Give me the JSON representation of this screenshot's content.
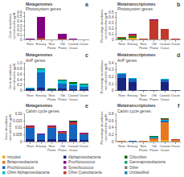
{
  "chart_data": [
    {
      "type": "bar",
      "stacked": true,
      "grid": false,
      "title": "Metagenomes",
      "subtitle": "Photosystem genes",
      "annotations": [
        "a"
      ],
      "ylabel": "Gene abundance normalised to gyrB",
      "categories": [
        "River",
        "Estuary",
        "New Plume",
        "Old Plume",
        "Coastal\nOcean",
        "Ocean"
      ],
      "series": [
        {
          "color": "#c0392b",
          "values": [
            0.005,
            0.04,
            0.003,
            0.015,
            0.005,
            0.003
          ]
        },
        {
          "color": "#800080",
          "values": [
            0.01,
            0.46,
            0.003,
            0.115,
            0.02,
            0.003
          ]
        }
      ],
      "ylim": [
        0,
        0.6
      ],
      "yticks": [
        0,
        0.1,
        0.2,
        0.3,
        0.4,
        0.5,
        0.6
      ]
    },
    {
      "type": "bar",
      "stacked": true,
      "grid": false,
      "title": "Metatranscriptomes",
      "subtitle": "Photosystem genes",
      "annotations": [
        "b"
      ],
      "ylabel": "Percentage abundance normalised to gyrB",
      "categories": [
        "River",
        "Estuary",
        "New Plume",
        "Old Plume",
        "Coastal\nOcean",
        "Ocean"
      ],
      "series": [
        {
          "color": "#f5a623",
          "values": [
            0.01,
            0.04,
            0.005,
            0.005,
            0.005,
            0.005
          ]
        },
        {
          "color": "#228800",
          "values": [
            0.02,
            0.02,
            0.005,
            0.005,
            0.005,
            0.005
          ]
        },
        {
          "color": "#c0392b",
          "values": [
            0.02,
            0.03,
            0.005,
            0.35,
            0.18,
            0.005
          ]
        },
        {
          "color": "#800080",
          "values": [
            0.005,
            0.01,
            0.003,
            0.005,
            0.005,
            0.003
          ]
        }
      ],
      "ylim": [
        0,
        0.5
      ],
      "yticks": [
        0,
        0.1,
        0.2,
        0.3,
        0.4,
        0.5
      ]
    },
    {
      "type": "bar",
      "stacked": true,
      "grid": false,
      "title": "Metagenomes",
      "subtitle": "AnP genes",
      "annotations": [
        "c"
      ],
      "ylabel": "Gene abundance normalised to gyrB",
      "categories": [
        "River",
        "Estuary",
        "New Plume",
        "Old Plume",
        "Coastal\nOcean",
        "Ocean"
      ],
      "series": [
        {
          "color": "#1a237e",
          "values": [
            0.05,
            0.1,
            0.03,
            0.08,
            0.06,
            0.05
          ]
        },
        {
          "color": "#1565c0",
          "values": [
            0.02,
            0.55,
            0.01,
            0.18,
            0.12,
            0.1
          ]
        },
        {
          "color": "#00bcd4",
          "values": [
            0.04,
            0.12,
            0.02,
            0.1,
            0.08,
            0.06
          ]
        },
        {
          "color": "#006400",
          "values": [
            0.01,
            0.03,
            0.005,
            0.04,
            0.04,
            0.03
          ]
        }
      ],
      "ylim": [
        0,
        1.0
      ],
      "yticks": [
        0,
        0.2,
        0.4,
        0.6,
        0.8,
        {
          "value": 1.0,
          "label": "1.0"
        }
      ]
    },
    {
      "type": "bar",
      "stacked": true,
      "grid": false,
      "title": "Metatranscriptomes",
      "subtitle": "AnP genes",
      "annotations": [
        "d"
      ],
      "ylabel": "Percentage abundance normalised to gyrB",
      "categories": [
        "River",
        "Estuary",
        "New Plume",
        "Old Plume",
        "Coastal\nOcean",
        "Ocean"
      ],
      "series": [
        {
          "color": "#1a237e",
          "values": [
            0.18,
            0.12,
            0.005,
            0.005,
            0.12,
            0.003
          ]
        },
        {
          "color": "#1565c0",
          "values": [
            0.06,
            0.05,
            0.003,
            0.003,
            0.04,
            0.002
          ]
        },
        {
          "color": "#00bcd4",
          "values": [
            0.01,
            0.01,
            0.002,
            0.002,
            0.01,
            0.001
          ]
        }
      ],
      "ylim": [
        0,
        0.4
      ],
      "yticks": [
        0,
        0.1,
        0.2,
        0.3,
        0.4
      ]
    },
    {
      "type": "bar",
      "stacked": true,
      "grid": false,
      "title": "Metagenomes",
      "subtitle": "Calvin cycle genes",
      "annotations": [
        "e"
      ],
      "ylabel": "Gene abundance normalised to gyrB",
      "categories": [
        "River",
        "Estuary",
        "New Plume",
        "Old Plume",
        "Coastal\nOcean",
        "Ocean"
      ],
      "series": [
        {
          "color": "#1a237e",
          "values": [
            0.002,
            0.001,
            0.002,
            0.001,
            0.002,
            0.001
          ]
        },
        {
          "color": "#1565c0",
          "values": [
            0.008,
            0.004,
            0.008,
            0.005,
            0.01,
            0.004
          ]
        },
        {
          "color": "#c0392b",
          "values": [
            0.001,
            0.0005,
            0.001,
            0.001,
            0.002,
            0.001
          ]
        },
        {
          "color": "#800080",
          "values": [
            0.0005,
            0.0003,
            0.0005,
            0.0004,
            0.0008,
            0.0003
          ]
        },
        {
          "color": "#006400",
          "values": [
            0.0003,
            0.0002,
            0.0003,
            0.0002,
            0.0004,
            0.0002
          ]
        }
      ],
      "ylim": [
        0,
        0.02
      ],
      "yticks": [
        0,
        0.005,
        0.01,
        0.015,
        0.02
      ]
    },
    {
      "type": "bar",
      "stacked": true,
      "grid": false,
      "title": "Metatranscriptomes",
      "subtitle": "Calvin cycle genes",
      "annotations": [
        "f"
      ],
      "ylabel": "Percentage abundance normalised to gyrB",
      "categories": [
        "River",
        "Estuary",
        "New Plume",
        "Old Plume",
        "Coastal\nOcean",
        "Ocean"
      ],
      "series": [
        {
          "color": "#f5a623",
          "values": [
            0.005,
            0.003,
            0.005,
            0.025,
            0.05,
            0.01
          ]
        },
        {
          "color": "#e87722",
          "values": [
            0.015,
            0.008,
            0.015,
            0.07,
            0.5,
            0.03
          ]
        },
        {
          "color": "#1565c0",
          "values": [
            0.005,
            0.003,
            0.005,
            0.025,
            0.05,
            0.01
          ]
        },
        {
          "color": "#00bcd4",
          "values": [
            0.003,
            0.002,
            0.003,
            0.015,
            0.03,
            0.006
          ]
        },
        {
          "color": "#c0392b",
          "values": [
            0.002,
            0.001,
            0.002,
            0.01,
            0.02,
            0.004
          ]
        },
        {
          "color": "#006400",
          "values": [
            0.002,
            0.001,
            0.002,
            0.01,
            0.02,
            0.004
          ]
        },
        {
          "color": "#808080",
          "values": [
            0.001,
            0.001,
            0.001,
            0.005,
            0.01,
            0.002
          ]
        }
      ],
      "ylim": [
        0,
        0.8
      ],
      "yticks": [
        0,
        0.2,
        0.4,
        0.6,
        0.8
      ]
    },
    {
      "type": "legend",
      "series": [
        {
          "name": "Intruded",
          "color": "#f5a623"
        },
        {
          "name": "Betaproteobacteria",
          "color": "#e87722"
        },
        {
          "name": "Prochlorococcus",
          "color": "#1565c0"
        },
        {
          "name": "Other Alphaproteobacteria",
          "color": "#00bcd4"
        },
        {
          "name": "Alphaproteobacteria",
          "color": "#1a237e"
        },
        {
          "name": "Prochlorococcus",
          "color": "#800080"
        },
        {
          "name": "Synechococcus",
          "color": "#a040a0"
        },
        {
          "name": "Other Cyanobacteria",
          "color": "#c0392b"
        },
        {
          "name": "Chloroflexi",
          "color": "#006400"
        },
        {
          "name": "Gammaproteobacteria",
          "color": "#16a085"
        },
        {
          "name": "Other",
          "color": "#808080"
        },
        {
          "name": "Unclassified",
          "color": "#2980b9"
        }
      ]
    }
  ]
}
